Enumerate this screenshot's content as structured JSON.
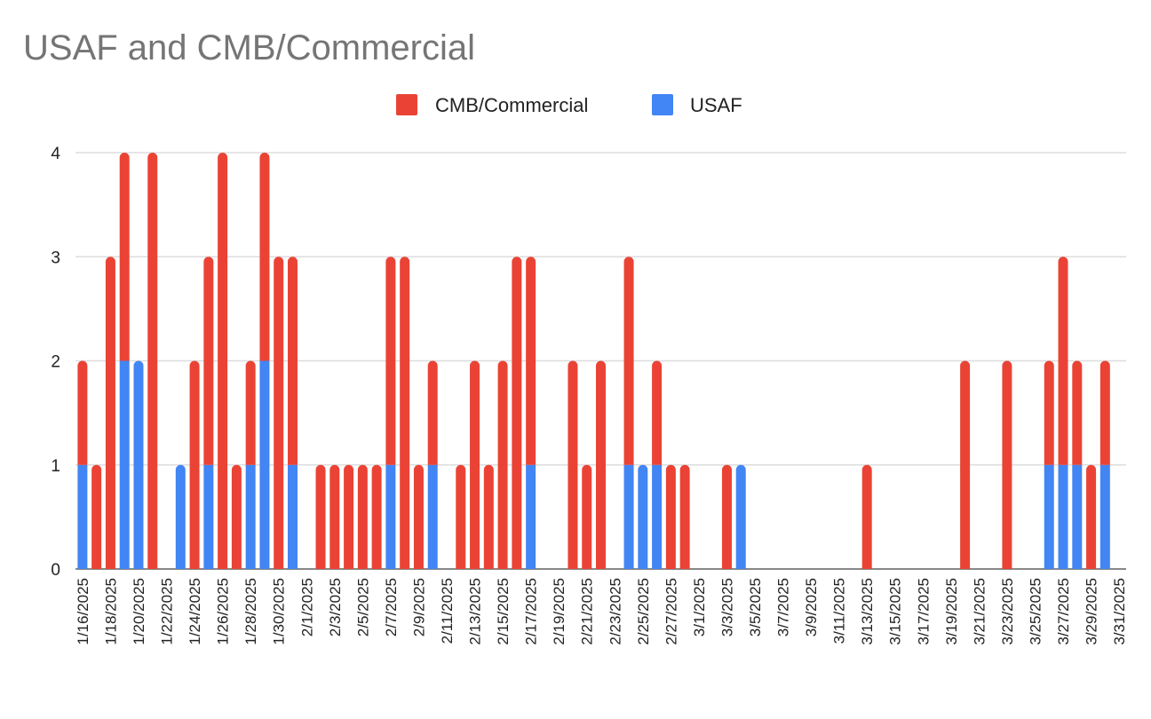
{
  "chart_data": {
    "type": "bar",
    "stacked": true,
    "title": "USAF and CMB/Commercial",
    "xlabel": "",
    "ylabel": "",
    "ylim": [
      0,
      4
    ],
    "yticks": [
      0,
      1,
      2,
      3,
      4
    ],
    "grid": true,
    "legend_position": "top",
    "x": [
      "1/16/2025",
      "1/17/2025",
      "1/18/2025",
      "1/19/2025",
      "1/20/2025",
      "1/21/2025",
      "1/22/2025",
      "1/23/2025",
      "1/24/2025",
      "1/25/2025",
      "1/26/2025",
      "1/27/2025",
      "1/28/2025",
      "1/29/2025",
      "1/30/2025",
      "1/31/2025",
      "2/1/2025",
      "2/2/2025",
      "2/3/2025",
      "2/4/2025",
      "2/5/2025",
      "2/6/2025",
      "2/7/2025",
      "2/8/2025",
      "2/9/2025",
      "2/10/2025",
      "2/11/2025",
      "2/12/2025",
      "2/13/2025",
      "2/14/2025",
      "2/15/2025",
      "2/16/2025",
      "2/17/2025",
      "2/18/2025",
      "2/19/2025",
      "2/20/2025",
      "2/21/2025",
      "2/22/2025",
      "2/23/2025",
      "2/24/2025",
      "2/25/2025",
      "2/26/2025",
      "2/27/2025",
      "2/28/2025",
      "3/1/2025",
      "3/2/2025",
      "3/3/2025",
      "3/4/2025",
      "3/5/2025",
      "3/6/2025",
      "3/7/2025",
      "3/8/2025",
      "3/9/2025",
      "3/10/2025",
      "3/11/2025",
      "3/12/2025",
      "3/13/2025",
      "3/14/2025",
      "3/15/2025",
      "3/16/2025",
      "3/17/2025",
      "3/18/2025",
      "3/19/2025",
      "3/20/2025",
      "3/21/2025",
      "3/22/2025",
      "3/23/2025",
      "3/24/2025",
      "3/25/2025",
      "3/26/2025",
      "3/27/2025",
      "3/28/2025",
      "3/29/2025",
      "3/30/2025",
      "3/31/2025"
    ],
    "tick_labels": [
      "1/16/2025",
      "1/18/2025",
      "1/20/2025",
      "1/22/2025",
      "1/24/2025",
      "1/26/2025",
      "1/28/2025",
      "1/30/2025",
      "2/1/2025",
      "2/3/2025",
      "2/5/2025",
      "2/7/2025",
      "2/9/2025",
      "2/11/2025",
      "2/13/2025",
      "2/15/2025",
      "2/17/2025",
      "2/19/2025",
      "2/21/2025",
      "2/23/2025",
      "2/25/2025",
      "2/27/2025",
      "3/1/2025",
      "3/3/2025",
      "3/5/2025",
      "3/7/2025",
      "3/9/2025",
      "3/11/2025",
      "3/13/2025",
      "3/15/2025",
      "3/17/2025",
      "3/19/2025",
      "3/21/2025",
      "3/23/2025",
      "3/25/2025",
      "3/27/2025",
      "3/29/2025",
      "3/31/2025"
    ],
    "series": [
      {
        "name": "USAF",
        "color": "#4285F4",
        "values": [
          1,
          0,
          0,
          2,
          2,
          0,
          0,
          1,
          0,
          1,
          0,
          0,
          1,
          2,
          0,
          1,
          0,
          0,
          0,
          0,
          0,
          0,
          1,
          0,
          0,
          1,
          0,
          0,
          0,
          0,
          0,
          0,
          1,
          0,
          0,
          0,
          0,
          0,
          0,
          1,
          1,
          1,
          0,
          0,
          0,
          0,
          0,
          1,
          0,
          0,
          0,
          0,
          0,
          0,
          0,
          0,
          0,
          0,
          0,
          0,
          0,
          0,
          0,
          0,
          0,
          0,
          0,
          0,
          0,
          1,
          1,
          1,
          0,
          1,
          0
        ]
      },
      {
        "name": "CMB/Commercial",
        "color": "#EA4335",
        "values": [
          1,
          1,
          3,
          2,
          0,
          4,
          0,
          0,
          2,
          2,
          4,
          1,
          1,
          2,
          3,
          2,
          0,
          1,
          1,
          1,
          1,
          1,
          2,
          3,
          1,
          1,
          0,
          1,
          2,
          1,
          2,
          3,
          2,
          0,
          0,
          2,
          1,
          2,
          0,
          2,
          0,
          1,
          1,
          1,
          0,
          0,
          1,
          0,
          0,
          0,
          0,
          0,
          0,
          0,
          0,
          0,
          1,
          0,
          0,
          0,
          0,
          0,
          0,
          2,
          0,
          0,
          2,
          0,
          0,
          1,
          2,
          1,
          1,
          1,
          0
        ]
      }
    ],
    "legend": [
      "CMB/Commercial",
      "USAF"
    ]
  }
}
